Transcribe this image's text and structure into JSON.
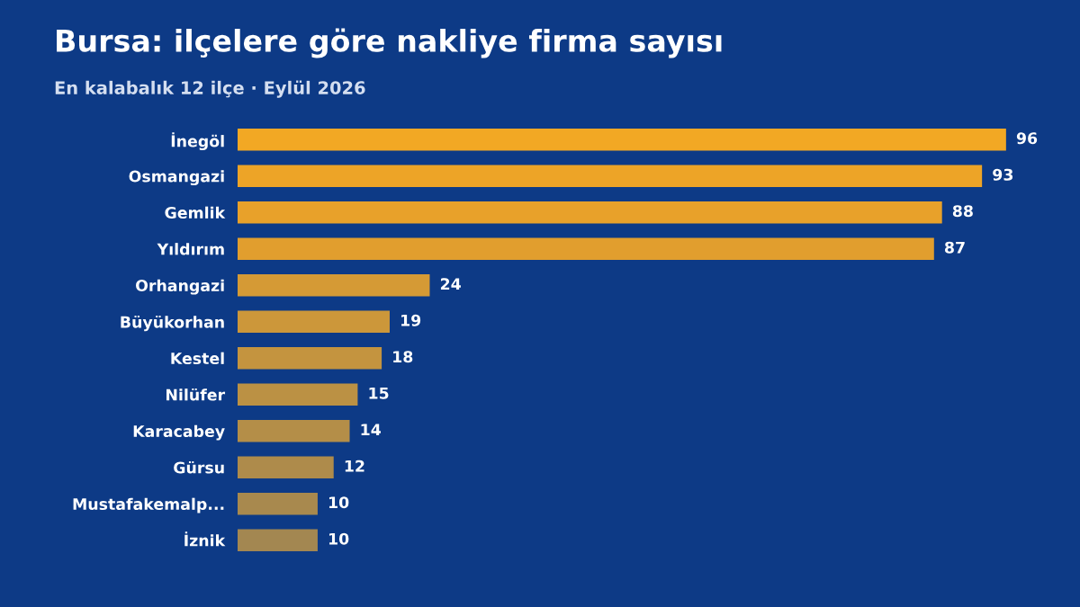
{
  "chart_data": {
    "type": "bar",
    "orientation": "horizontal",
    "title": "Bursa: ilçelere göre nakliye firma sayısı",
    "subtitle": "En kalabalık 12 ilçe · Eylül 2026",
    "categories": [
      "İnegöl",
      "Osmangazi",
      "Gemlik",
      "Yıldırım",
      "Orhangazi",
      "Büyükorhan",
      "Kestel",
      "Nilüfer",
      "Karacabey",
      "Gürsu",
      "Mustafakemalp...",
      "İznik"
    ],
    "values": [
      96,
      93,
      88,
      87,
      24,
      19,
      18,
      15,
      14,
      12,
      10,
      10
    ],
    "colors": [
      "#f2a824",
      "#eda427",
      "#e8a12a",
      "#e19e2e",
      "#d59a35",
      "#cc973a",
      "#c4943f",
      "#bb9144",
      "#b48e48",
      "#ae8b4b",
      "#a8894e",
      "#a38751"
    ],
    "data_labels": true,
    "grid": false,
    "legend": false
  }
}
